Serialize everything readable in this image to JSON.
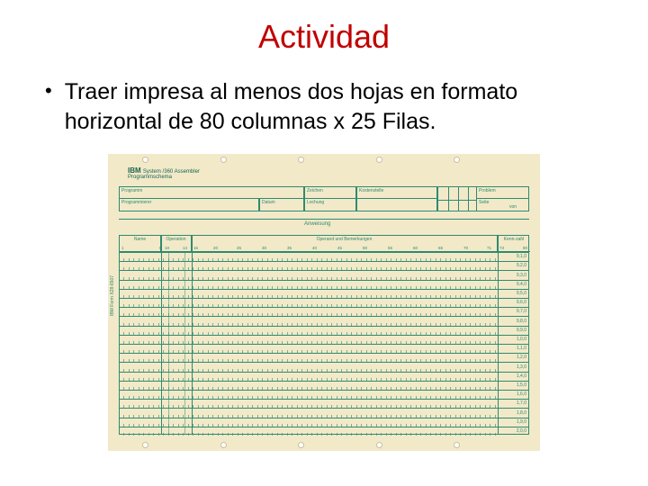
{
  "title": "Actividad",
  "title_color": "#c00000",
  "bullet_text": "Traer impresa al menos dos hojas en formato horizontal de 80 columnas x 25 Filas.",
  "text_color": "#000000",
  "form": {
    "paper_color": "#f2e9c9",
    "ink_color": "#2e8b6f",
    "logo_color": "#1a6650",
    "logo": "IBM",
    "logo_line": "System /360 Assembler",
    "logo_sub": "Programmschema",
    "field_programm": "Programm",
    "field_programmierer": "Programmierer",
    "field_datum": "Datum",
    "field_zeichen": "Zeichen",
    "field_lochung": "Lochung",
    "field_kostenstelle": "Kostenstelle",
    "field_problem": "Problem",
    "field_seite": "Seite",
    "field_von": "von",
    "header_anweisung": "Anweisung",
    "col_name": "Name",
    "col_operation": "Operation",
    "col_operand": "Operand und Bemerkungen",
    "col_kenn": "Kenn-zahl",
    "col_numbers": [
      "1",
      "8",
      "10",
      "14",
      "16",
      "20",
      "25",
      "30",
      "35",
      "40",
      "45",
      "50",
      "55",
      "60",
      "65",
      "70",
      "71",
      "73",
      "80"
    ],
    "row_numbers": [
      "9,1,0",
      "9,2,0",
      "9,3,0",
      "9,4,0",
      "9,5,0",
      "9,6,0",
      "9,7,0",
      "9,8,0",
      "9,9,0",
      "1,0,0",
      "1,1,0",
      "1,2,0",
      "1,3,0",
      "1,4,0",
      "1,5,0",
      "1,6,0",
      "1,7,0",
      "1,8,0",
      "1,9,0",
      "2,0,0"
    ],
    "num_rows": 20,
    "hole_positions_pct": [
      8,
      26,
      44,
      62,
      80
    ],
    "side_label": "IBM Form X28-6507"
  }
}
